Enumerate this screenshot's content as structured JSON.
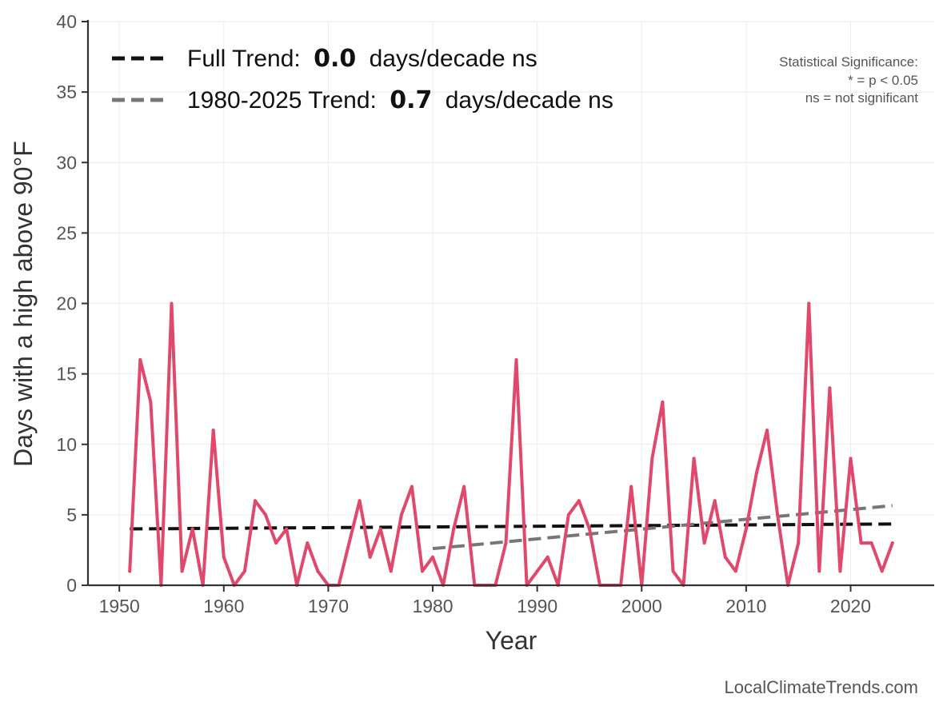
{
  "chart_data": {
    "type": "line",
    "xlabel": "Year",
    "ylabel": "Days with a high above 90°F",
    "xlim": [
      1947,
      2028
    ],
    "ylim": [
      0,
      40
    ],
    "xticks": [
      1950,
      1960,
      1970,
      1980,
      1990,
      2000,
      2010,
      2020
    ],
    "yticks": [
      0,
      5,
      10,
      15,
      20,
      25,
      30,
      35,
      40
    ],
    "grid": true,
    "legend_position": "top-left",
    "series": [
      {
        "kind": "observed",
        "color": "#e0496b",
        "x": [
          1951,
          1952,
          1953,
          1954,
          1955,
          1956,
          1957,
          1958,
          1959,
          1960,
          1961,
          1962,
          1963,
          1964,
          1965,
          1966,
          1967,
          1968,
          1969,
          1970,
          1971,
          1972,
          1973,
          1974,
          1975,
          1976,
          1977,
          1978,
          1979,
          1980,
          1981,
          1982,
          1983,
          1984,
          1985,
          1986,
          1987,
          1988,
          1989,
          1990,
          1991,
          1992,
          1993,
          1994,
          1995,
          1996,
          1997,
          1998,
          1999,
          2000,
          2001,
          2002,
          2003,
          2004,
          2005,
          2006,
          2007,
          2008,
          2009,
          2010,
          2011,
          2012,
          2013,
          2014,
          2015,
          2016,
          2017,
          2018,
          2019,
          2020,
          2021,
          2022,
          2023,
          2024
        ],
        "values": [
          1,
          16,
          13,
          0,
          20,
          1,
          4,
          0,
          11,
          2,
          0,
          1,
          6,
          5,
          3,
          4,
          0,
          3,
          1,
          0,
          0,
          3,
          6,
          2,
          4,
          1,
          5,
          7,
          1,
          2,
          0,
          4,
          7,
          0,
          0,
          0,
          3,
          16,
          0,
          1,
          2,
          0,
          5,
          6,
          4,
          0,
          0,
          0,
          7,
          0,
          9,
          13,
          1,
          0,
          9,
          3,
          6,
          2,
          1,
          4,
          8,
          11,
          5,
          0,
          3,
          20,
          1,
          14,
          1,
          9,
          3,
          3,
          1,
          3
        ]
      },
      {
        "kind": "trend",
        "name": "Full Trend:",
        "value_text": "0.0",
        "suffix": "days/decade ns",
        "color": "#111111",
        "x": [
          1951,
          2024
        ],
        "values": [
          4.0,
          4.35
        ]
      },
      {
        "kind": "trend",
        "name": "1980-2025 Trend:",
        "value_text": "0.7",
        "suffix": "days/decade ns",
        "color": "#777777",
        "x": [
          1980,
          2024
        ],
        "values": [
          2.6,
          5.65
        ]
      }
    ],
    "significance_note": {
      "title": "Statistical Significance:",
      "line1": "* = p < 0.05",
      "line2": "ns = not significant"
    },
    "credit": "LocalClimateTrends.com"
  }
}
